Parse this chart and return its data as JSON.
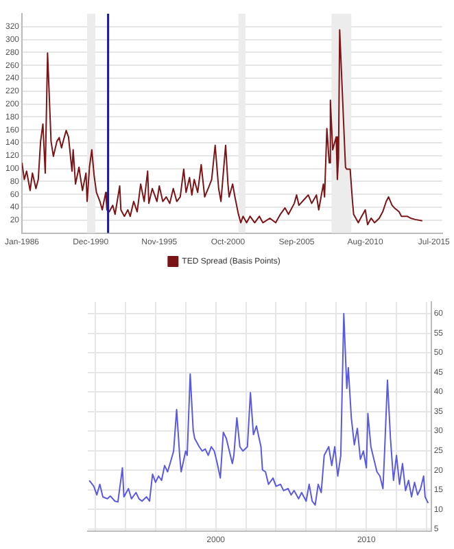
{
  "chart_data": [
    {
      "type": "line",
      "xlim": [
        "1986-01",
        "2016-02"
      ],
      "ylim": [
        0,
        340
      ],
      "xticks": [
        {
          "value": "1986-01",
          "label": "Jan-1986"
        },
        {
          "value": "1990-12",
          "label": "Dec-1990"
        },
        {
          "value": "1995-11",
          "label": "Nov-1995"
        },
        {
          "value": "2000-10",
          "label": "Oct-2000"
        },
        {
          "value": "2005-09",
          "label": "Sep-2005"
        },
        {
          "value": "2010-08",
          "label": "Aug-2010"
        },
        {
          "value": "2015-07",
          "label": "Jul-2015"
        }
      ],
      "yticks": [
        20,
        40,
        60,
        80,
        100,
        120,
        140,
        160,
        180,
        200,
        220,
        240,
        260,
        280,
        300,
        320
      ],
      "grid": "y",
      "legend": "bottom",
      "marker": "none",
      "line_style": "solid",
      "bands": [
        {
          "axis": "x",
          "from": "1990-09",
          "to": "1991-04",
          "color": "#ececec"
        },
        {
          "axis": "x",
          "from": "2001-07",
          "to": "2002-01",
          "color": "#ececec"
        },
        {
          "axis": "x",
          "from": "2008-03",
          "to": "2009-08",
          "color": "#ececec"
        }
      ],
      "ref_lines": [
        {
          "axis": "x",
          "value": "1992-03",
          "color": "#1a1a9a"
        }
      ],
      "series": [
        {
          "name": "TED Spread (Basis Points)",
          "color": "#7b1416",
          "x": [
            "1986-01",
            "1986-03",
            "1986-05",
            "1986-08",
            "1986-10",
            "1987-01",
            "1987-03",
            "1987-05",
            "1987-07",
            "1987-09",
            "1987-11",
            "1988-02",
            "1988-04",
            "1988-07",
            "1988-09",
            "1988-11",
            "1989-01",
            "1989-03",
            "1989-05",
            "1989-08",
            "1989-09",
            "1989-11",
            "1990-02",
            "1990-03",
            "1990-05",
            "1990-08",
            "1990-09",
            "1990-11",
            "1991-01",
            "1991-03",
            "1991-05",
            "1991-08",
            "1991-10",
            "1992-01",
            "1992-02",
            "1992-04",
            "1992-07",
            "1992-09",
            "1993-01",
            "1993-02",
            "1993-05",
            "1993-08",
            "1993-10",
            "1994-01",
            "1994-04",
            "1994-07",
            "1994-10",
            "1995-01",
            "1995-02",
            "1995-05",
            "1995-09",
            "1995-11",
            "1996-02",
            "1996-05",
            "1996-08",
            "1996-11",
            "1997-02",
            "1997-05",
            "1997-08",
            "1997-10",
            "1998-01",
            "1998-03",
            "1998-05",
            "1998-08",
            "1998-11",
            "1999-02",
            "1999-05",
            "1999-08",
            "1999-11",
            "2000-02",
            "2000-04",
            "2000-08",
            "2000-10",
            "2000-11",
            "2001-02",
            "2001-04",
            "2001-07",
            "2001-09",
            "2001-11",
            "2002-02",
            "2002-05",
            "2002-09",
            "2003-01",
            "2003-04",
            "2003-10",
            "2004-03",
            "2004-07",
            "2004-11",
            "2005-02",
            "2005-07",
            "2005-09",
            "2005-11",
            "2006-04",
            "2006-07",
            "2006-10",
            "2007-02",
            "2007-04",
            "2007-08",
            "2007-09",
            "2007-11",
            "2008-01",
            "2008-02",
            "2008-04",
            "2008-07",
            "2008-08",
            "2008-09",
            "2008-10",
            "2009-03",
            "2009-04",
            "2009-07",
            "2009-09",
            "2009-10",
            "2010-02",
            "2010-04",
            "2010-08",
            "2010-10",
            "2011-01",
            "2011-04",
            "2011-08",
            "2011-11",
            "2012-02",
            "2012-04",
            "2012-07",
            "2012-09",
            "2013-01",
            "2013-03",
            "2013-08",
            "2013-11",
            "2014-03",
            "2014-09"
          ],
          "values": [
            109,
            83,
            96,
            66,
            93,
            69,
            83,
            142,
            169,
            93,
            279,
            142,
            119,
            142,
            148,
            132,
            146,
            159,
            149,
            96,
            129,
            76,
            102,
            89,
            66,
            93,
            49,
            102,
            129,
            89,
            63,
            49,
            36,
            63,
            36,
            33,
            43,
            29,
            73,
            36,
            26,
            36,
            26,
            49,
            33,
            76,
            49,
            96,
            46,
            69,
            49,
            73,
            49,
            56,
            46,
            69,
            49,
            56,
            99,
            63,
            86,
            59,
            83,
            63,
            106,
            56,
            69,
            83,
            136,
            69,
            49,
            136,
            76,
            56,
            76,
            56,
            29,
            16,
            26,
            16,
            26,
            16,
            26,
            16,
            23,
            16,
            29,
            39,
            29,
            46,
            59,
            43,
            53,
            59,
            46,
            59,
            36,
            76,
            56,
            162,
            109,
            206,
            129,
            149,
            83,
            116,
            315,
            102,
            99,
            99,
            49,
            29,
            16,
            23,
            36,
            13,
            23,
            16,
            23,
            33,
            49,
            56,
            43,
            39,
            33,
            26,
            26,
            23,
            21,
            19
          ]
        }
      ]
    },
    {
      "type": "line",
      "xlim": [
        1991.5,
        2014.3
      ],
      "y2lim": [
        4.5,
        63
      ],
      "xticks": [
        {
          "value": 1992,
          "label": null
        },
        {
          "value": 1994,
          "label": null
        },
        {
          "value": 1996,
          "label": null
        },
        {
          "value": 1998,
          "label": null
        },
        2000,
        {
          "value": 2002,
          "label": null
        },
        {
          "value": 2004,
          "label": null
        },
        {
          "value": 2006,
          "label": null
        },
        {
          "value": 2008,
          "label": null
        },
        2010,
        {
          "value": 2012,
          "label": null
        },
        {
          "value": 2014,
          "label": null
        }
      ],
      "y2ticks": [
        5,
        10,
        15,
        20,
        25,
        30,
        35,
        40,
        45,
        50,
        55,
        60
      ],
      "grid": true,
      "marker": "none",
      "line_style": "solid",
      "series": [
        {
          "color": "#5a5ae0",
          "axis": "y2",
          "x": [
            1991.6,
            1991.9,
            1992.1,
            1992.3,
            1992.5,
            1992.8,
            1993.0,
            1993.3,
            1993.5,
            1993.8,
            1993.9,
            1994.2,
            1994.4,
            1994.7,
            1994.9,
            1995.1,
            1995.4,
            1995.6,
            1995.8,
            1996.0,
            1996.2,
            1996.4,
            1996.6,
            1996.8,
            1997.0,
            1997.2,
            1997.4,
            1997.6,
            1997.7,
            1998.0,
            1998.1,
            1998.3,
            1998.5,
            1998.6,
            1998.9,
            1999.1,
            1999.3,
            1999.5,
            1999.7,
            1999.9,
            2000.1,
            2000.3,
            2000.5,
            2000.7,
            2000.9,
            2001.1,
            2001.2,
            2001.4,
            2001.6,
            2001.8,
            2002.1,
            2002.3,
            2002.5,
            2002.7,
            2003.0,
            2003.1,
            2003.3,
            2003.5,
            2003.8,
            2004.0,
            2004.3,
            2004.5,
            2004.8,
            2005.0,
            2005.2,
            2005.5,
            2005.7,
            2006.0,
            2006.2,
            2006.4,
            2006.6,
            2006.8,
            2007.0,
            2007.2,
            2007.5,
            2007.7,
            2007.9,
            2008.1,
            2008.3,
            2008.5,
            2008.7,
            2008.8,
            2009.0,
            2009.2,
            2009.4,
            2009.6,
            2009.8,
            2010.0,
            2010.1,
            2010.3,
            2010.5,
            2010.7,
            2010.9,
            2011.1,
            2011.2,
            2011.4,
            2011.6,
            2011.8,
            2012.0,
            2012.2,
            2012.4,
            2012.6,
            2012.8,
            2013.0,
            2013.2,
            2013.4,
            2013.6,
            2013.8,
            2013.9,
            2014.1
          ],
          "values": [
            17.4,
            15.9,
            13.7,
            16.4,
            13.2,
            12.7,
            13.4,
            12.1,
            11.9,
            20.6,
            13.2,
            15.3,
            12.7,
            14.3,
            12.7,
            12.1,
            13.2,
            12.1,
            19.0,
            16.9,
            18.5,
            17.4,
            21.2,
            19.6,
            22.2,
            24.9,
            35.5,
            23.8,
            19.6,
            24.9,
            23.8,
            44.6,
            30.2,
            28.1,
            26.0,
            24.9,
            25.4,
            23.8,
            26.0,
            24.9,
            21.7,
            18.0,
            29.7,
            28.1,
            24.9,
            21.7,
            23.8,
            33.4,
            26.0,
            24.9,
            26.0,
            39.8,
            29.1,
            31.3,
            26.0,
            20.1,
            19.6,
            16.4,
            18.0,
            15.9,
            16.4,
            14.8,
            15.3,
            13.7,
            14.8,
            12.7,
            14.3,
            12.1,
            16.4,
            12.1,
            11.1,
            16.4,
            14.3,
            23.8,
            26.0,
            21.2,
            26.0,
            18.5,
            23.8,
            60.0,
            40.9,
            46.2,
            33.4,
            26.5,
            30.7,
            22.8,
            24.9,
            20.6,
            34.5,
            26.0,
            22.8,
            19.6,
            18.5,
            15.3,
            23.8,
            43.0,
            28.1,
            17.4,
            23.8,
            16.4,
            21.7,
            14.8,
            17.4,
            13.2,
            16.9,
            13.7,
            15.3,
            18.5,
            13.2,
            11.6
          ]
        }
      ]
    }
  ]
}
